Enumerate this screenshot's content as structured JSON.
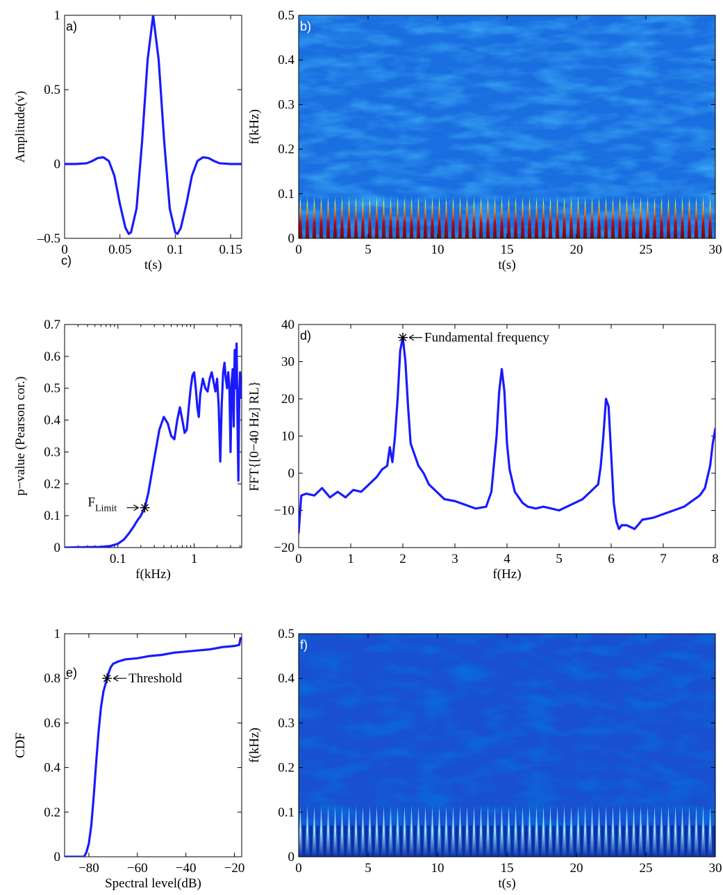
{
  "chart_data": [
    {
      "id": "a",
      "panel_label": "a)",
      "type": "line",
      "xlabel": "t(s)",
      "ylabel": "Amplitude(v)",
      "xlim": [
        0,
        0.16
      ],
      "ylim": [
        -0.5,
        1
      ],
      "xticks": [
        0,
        0.05,
        0.1,
        0.15
      ],
      "xtick_labels": [
        "0",
        "0.05",
        "0.1",
        "0.15"
      ],
      "yticks": [
        -0.5,
        0,
        0.5,
        1
      ],
      "ytick_labels": [
        "–0.5",
        "0",
        "0.5",
        "1"
      ],
      "series": [
        {
          "color": "#1a1aff",
          "x": [
            0,
            0.01,
            0.02,
            0.025,
            0.03,
            0.035,
            0.04,
            0.045,
            0.05,
            0.055,
            0.058,
            0.06,
            0.065,
            0.07,
            0.075,
            0.08,
            0.085,
            0.09,
            0.095,
            0.1,
            0.102,
            0.105,
            0.11,
            0.115,
            0.12,
            0.125,
            0.13,
            0.135,
            0.14,
            0.15,
            0.16
          ],
          "y": [
            0,
            0,
            0.005,
            0.02,
            0.04,
            0.045,
            0.02,
            -0.08,
            -0.27,
            -0.43,
            -0.47,
            -0.46,
            -0.3,
            0.15,
            0.7,
            1.0,
            0.7,
            0.15,
            -0.3,
            -0.46,
            -0.47,
            -0.43,
            -0.27,
            -0.08,
            0.02,
            0.045,
            0.04,
            0.02,
            0.005,
            0,
            0
          ]
        }
      ]
    },
    {
      "id": "b",
      "panel_label": "b)",
      "type": "heatmap",
      "xlabel": "t(s)",
      "ylabel": "f(kHz)",
      "xlim": [
        0,
        30
      ],
      "ylim": [
        0,
        0.5
      ],
      "xticks": [
        0,
        5,
        10,
        15,
        20,
        25,
        30
      ],
      "xtick_labels": [
        "0",
        "5",
        "10",
        "15",
        "20",
        "25",
        "30"
      ],
      "yticks": [
        0,
        0.1,
        0.2,
        0.3,
        0.4,
        0.5
      ],
      "ytick_labels": [
        "0",
        "0.1",
        "0.2",
        "0.3",
        "0.4",
        "0.5"
      ],
      "colormap": "jet",
      "pulse_rate_hz": 2,
      "pulse_band_khz": [
        0,
        0.08
      ]
    },
    {
      "id": "c",
      "panel_label": "c)",
      "type": "line",
      "xscale": "log",
      "xlabel": "f(kHz)",
      "ylabel": "p−value (Pearson cor.)",
      "xlim": [
        0.02,
        4.2
      ],
      "ylim": [
        0,
        0.7
      ],
      "xticks": [
        0.1,
        1
      ],
      "xtick_labels": [
        "0.1",
        "1"
      ],
      "yticks": [
        0,
        0.1,
        0.2,
        0.3,
        0.4,
        0.5,
        0.6,
        0.7
      ],
      "ytick_labels": [
        "0",
        "0.1",
        "0.2",
        "0.3",
        "0.4",
        "0.5",
        "0.6",
        "0.7"
      ],
      "annotation": {
        "text": "F",
        "sub": "Limit",
        "x": 0.225,
        "y": 0.125
      },
      "series": [
        {
          "color": "#1a1aff",
          "x": [
            0.02,
            0.06,
            0.08,
            0.1,
            0.12,
            0.14,
            0.16,
            0.18,
            0.2,
            0.225,
            0.25,
            0.3,
            0.35,
            0.4,
            0.45,
            0.5,
            0.55,
            0.6,
            0.65,
            0.7,
            0.75,
            0.8,
            0.85,
            0.9,
            0.95,
            1.0,
            1.05,
            1.1,
            1.15,
            1.2,
            1.3,
            1.4,
            1.5,
            1.6,
            1.7,
            1.8,
            1.9,
            2.0,
            2.1,
            2.2,
            2.3,
            2.4,
            2.5,
            2.6,
            2.7,
            2.8,
            2.9,
            3.0,
            3.1,
            3.2,
            3.3,
            3.4,
            3.5,
            3.6,
            3.7,
            3.8,
            3.9,
            4.0,
            4.1
          ],
          "y": [
            0,
            0.002,
            0.005,
            0.012,
            0.025,
            0.045,
            0.065,
            0.085,
            0.1,
            0.125,
            0.17,
            0.28,
            0.37,
            0.41,
            0.39,
            0.35,
            0.34,
            0.4,
            0.44,
            0.4,
            0.36,
            0.37,
            0.44,
            0.5,
            0.54,
            0.55,
            0.5,
            0.44,
            0.41,
            0.48,
            0.53,
            0.5,
            0.49,
            0.53,
            0.55,
            0.52,
            0.49,
            0.53,
            0.44,
            0.27,
            0.45,
            0.55,
            0.58,
            0.53,
            0.5,
            0.55,
            0.5,
            0.3,
            0.52,
            0.56,
            0.38,
            0.62,
            0.5,
            0.64,
            0.4,
            0.21,
            0.48,
            0.55,
            0.47
          ]
        }
      ]
    },
    {
      "id": "d",
      "panel_label": "d)",
      "type": "line",
      "xlabel": "f(Hz)",
      "ylabel": "FFT{[0−40 Hz] RL}",
      "xlim": [
        0,
        8
      ],
      "ylim": [
        -20,
        40
      ],
      "xticks": [
        0,
        1,
        2,
        3,
        4,
        5,
        6,
        7,
        8
      ],
      "xtick_labels": [
        "0",
        "1",
        "2",
        "3",
        "4",
        "5",
        "6",
        "7",
        "8"
      ],
      "yticks": [
        -20,
        -10,
        0,
        10,
        20,
        30,
        40
      ],
      "ytick_labels": [
        "−20",
        "−10",
        "0",
        "10",
        "20",
        "30",
        "40"
      ],
      "annotation": {
        "text": "Fundamental frequency",
        "x": 2.0,
        "y": 36.5
      },
      "series": [
        {
          "color": "#1a1aff",
          "x": [
            0,
            0.05,
            0.15,
            0.3,
            0.45,
            0.6,
            0.75,
            0.9,
            1.05,
            1.2,
            1.35,
            1.5,
            1.6,
            1.7,
            1.75,
            1.8,
            1.85,
            1.9,
            1.95,
            2.0,
            2.05,
            2.1,
            2.15,
            2.2,
            2.3,
            2.4,
            2.5,
            2.65,
            2.8,
            3.0,
            3.2,
            3.4,
            3.6,
            3.7,
            3.8,
            3.85,
            3.9,
            3.95,
            4.0,
            4.05,
            4.1,
            4.15,
            4.2,
            4.3,
            4.4,
            4.55,
            4.7,
            4.85,
            5.0,
            5.15,
            5.3,
            5.45,
            5.6,
            5.75,
            5.8,
            5.85,
            5.9,
            5.95,
            6.0,
            6.05,
            6.1,
            6.15,
            6.2,
            6.3,
            6.45,
            6.6,
            6.8,
            7.0,
            7.2,
            7.4,
            7.6,
            7.7,
            7.8,
            7.85,
            7.9,
            7.95,
            8.0
          ],
          "y": [
            -16,
            -6,
            -5.5,
            -6,
            -4,
            -6.5,
            -5,
            -6.5,
            -4.5,
            -5,
            -3,
            -1,
            1,
            2,
            7,
            3,
            10,
            20,
            33,
            36.5,
            30,
            18,
            8,
            6,
            2,
            0,
            -3,
            -5,
            -7,
            -7.5,
            -8.5,
            -9.5,
            -9,
            -5,
            10,
            22,
            28,
            22,
            8,
            1,
            -2,
            -5,
            -6,
            -8,
            -9,
            -9.5,
            -9,
            -9.5,
            -10,
            -9,
            -8,
            -7,
            -5,
            -3,
            2,
            10,
            20,
            18,
            5,
            -8,
            -13,
            -15,
            -14,
            -14,
            -15,
            -12.5,
            -12,
            -11,
            -10,
            -9,
            -7,
            -6,
            -4,
            -1,
            2,
            8,
            12
          ]
        }
      ]
    },
    {
      "id": "e",
      "panel_label": "e)",
      "type": "line",
      "xlabel": "Spectral level(dB)",
      "ylabel": "CDF",
      "xlim": [
        -90,
        -17
      ],
      "ylim": [
        0,
        1
      ],
      "xticks": [
        -80,
        -60,
        -40,
        -20
      ],
      "xtick_labels": [
        "−80",
        "−60",
        "−40",
        "−20"
      ],
      "yticks": [
        0,
        0.2,
        0.4,
        0.6,
        0.8,
        1
      ],
      "ytick_labels": [
        "0",
        "0.2",
        "0.4",
        "0.6",
        "0.8",
        "1"
      ],
      "annotation": {
        "text": "Threshold",
        "x": -72.5,
        "y": 0.8
      },
      "series": [
        {
          "color": "#1a1aff",
          "x": [
            -90,
            -82,
            -81,
            -80,
            -79,
            -78,
            -77,
            -76,
            -75,
            -74,
            -73,
            -72.5,
            -72,
            -71,
            -70,
            -68,
            -65,
            -60,
            -55,
            -50,
            -45,
            -40,
            -35,
            -30,
            -25,
            -20,
            -18,
            -17.5
          ],
          "y": [
            0,
            0,
            0.02,
            0.06,
            0.14,
            0.27,
            0.42,
            0.56,
            0.67,
            0.74,
            0.78,
            0.8,
            0.82,
            0.85,
            0.865,
            0.875,
            0.885,
            0.89,
            0.9,
            0.905,
            0.915,
            0.92,
            0.925,
            0.93,
            0.94,
            0.945,
            0.95,
            0.98
          ]
        }
      ]
    },
    {
      "id": "f",
      "panel_label": "f)",
      "type": "heatmap",
      "xlabel": "t(s)",
      "ylabel": "f(kHz)",
      "xlim": [
        0,
        30
      ],
      "ylim": [
        0,
        0.5
      ],
      "xticks": [
        0,
        5,
        10,
        15,
        20,
        25,
        30
      ],
      "xtick_labels": [
        "0",
        "5",
        "10",
        "15",
        "20",
        "25",
        "30"
      ],
      "yticks": [
        0,
        0.1,
        0.2,
        0.3,
        0.4,
        0.5
      ],
      "ytick_labels": [
        "0",
        "0.1",
        "0.2",
        "0.3",
        "0.4",
        "0.5"
      ],
      "colormap": "jet",
      "pulse_rate_hz": 2,
      "pulse_band_khz": [
        0,
        0.08
      ]
    }
  ]
}
